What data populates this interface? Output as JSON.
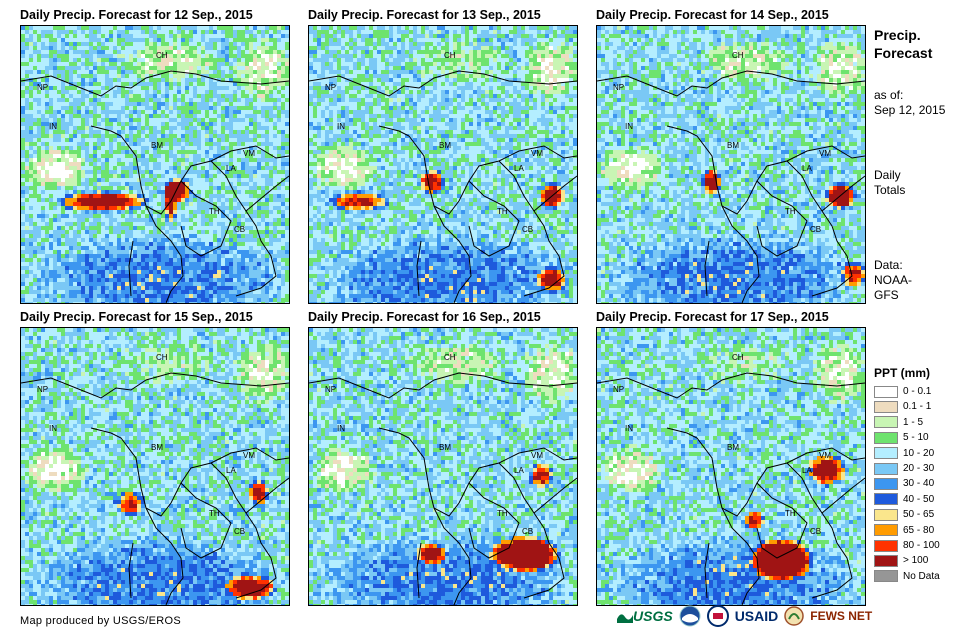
{
  "panels": [
    {
      "title": "Daily Precip. Forecast for 12 Sep., 2015",
      "labels": {
        "ch": "CH",
        "np": "NP",
        "in": "IN",
        "bm": "BM",
        "la": "LA",
        "vm": "VM",
        "th": "TH",
        "cb": "CB"
      }
    },
    {
      "title": "Daily Precip. Forecast for 13 Sep., 2015",
      "labels": {
        "ch": "CH",
        "np": "NP",
        "in": "IN",
        "bm": "BM",
        "la": "LA",
        "vm": "VM",
        "th": "TH",
        "cb": "CB"
      }
    },
    {
      "title": "Daily Precip. Forecast for 14 Sep., 2015",
      "labels": {
        "ch": "CH",
        "np": "NP",
        "in": "IN",
        "bm": "BM",
        "la": "LA",
        "vm": "VM",
        "th": "TH",
        "cb": "CB"
      }
    },
    {
      "title": "Daily Precip. Forecast for 15 Sep., 2015",
      "labels": {
        "ch": "CH",
        "np": "NP",
        "in": "IN",
        "bm": "BM",
        "la": "LA",
        "vm": "VM",
        "th": "TH",
        "cb": "CB"
      }
    },
    {
      "title": "Daily Precip. Forecast for 16 Sep., 2015",
      "labels": {
        "ch": "CH",
        "np": "NP",
        "in": "IN",
        "bm": "BM",
        "la": "LA",
        "vm": "VM",
        "th": "TH",
        "cb": "CB"
      }
    },
    {
      "title": "Daily Precip. Forecast for 17 Sep., 2015",
      "labels": {
        "ch": "CH",
        "np": "NP",
        "in": "IN",
        "bm": "BM",
        "la": "LA",
        "vm": "VM",
        "th": "TH",
        "cb": "CB"
      }
    }
  ],
  "side": {
    "title_line1": "Precip.",
    "title_line2": "Forecast",
    "asof_label": "as of:",
    "asof_date": "Sep 12, 2015",
    "totals_line1": "Daily",
    "totals_line2": "Totals",
    "data_label": "Data:",
    "data_line1": "NOAA-",
    "data_line2": "GFS"
  },
  "legend": {
    "title": "PPT (mm)",
    "items": [
      {
        "label": "0 - 0.1",
        "color": "#ffffff"
      },
      {
        "label": "0.1 - 1",
        "color": "#eedcbf"
      },
      {
        "label": "1 - 5",
        "color": "#c8f5b4"
      },
      {
        "label": "5 - 10",
        "color": "#6ee36e"
      },
      {
        "label": "10 - 20",
        "color": "#b4eeff"
      },
      {
        "label": "20 - 30",
        "color": "#7ac8f5"
      },
      {
        "label": "30 - 40",
        "color": "#3c96f0"
      },
      {
        "label": "40 - 50",
        "color": "#1e5adc"
      },
      {
        "label": "50 - 65",
        "color": "#fae68c"
      },
      {
        "label": "65 - 80",
        "color": "#ff9b00"
      },
      {
        "label": "80 - 100",
        "color": "#ff3200"
      },
      {
        "label": "> 100",
        "color": "#a01414"
      },
      {
        "label": "No Data",
        "color": "#969696"
      }
    ]
  },
  "footer": {
    "credit": "Map produced by USGS/EROS"
  },
  "logos": {
    "usgs": "USGS",
    "usaid": "USAID",
    "fewsnet": "FEWS NET"
  }
}
